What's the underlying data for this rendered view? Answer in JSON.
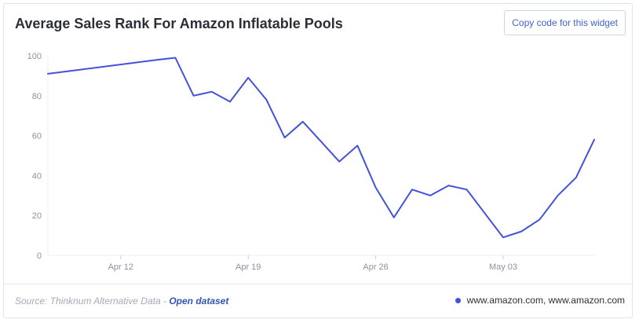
{
  "widget": {
    "title": "Average Sales Rank For Amazon Inflatable Pools",
    "copy_button_label": "Copy code for this widget"
  },
  "footer": {
    "source_prefix": "Source: Thinknum Alternative Data -",
    "source_link": "Open dataset",
    "legend_label": "www.amazon.com, www.amazon.com"
  },
  "colors": {
    "line": "#4352d8",
    "grid": "#e9ecf1"
  },
  "chart_data": {
    "type": "line",
    "title": "Average Sales Rank For Amazon Inflatable Pools",
    "xlabel": "",
    "ylabel": "",
    "ylim": [
      0,
      100
    ],
    "yticks": [
      0,
      20,
      40,
      60,
      80,
      100
    ],
    "xlim": [
      "2021-04-08",
      "2021-05-08"
    ],
    "xticks": [
      {
        "date": "2021-04-12",
        "label": "Apr 12"
      },
      {
        "date": "2021-04-19",
        "label": "Apr 19"
      },
      {
        "date": "2021-04-26",
        "label": "Apr 26"
      },
      {
        "date": "2021-05-03",
        "label": "May 03"
      }
    ],
    "grid": false,
    "legend": "bottom-right",
    "series": [
      {
        "name": "www.amazon.com, www.amazon.com",
        "x": [
          "2021-04-08",
          "2021-04-14",
          "2021-04-15",
          "2021-04-16",
          "2021-04-17",
          "2021-04-18",
          "2021-04-19",
          "2021-04-20",
          "2021-04-21",
          "2021-04-22",
          "2021-04-23",
          "2021-04-24",
          "2021-04-25",
          "2021-04-26",
          "2021-04-27",
          "2021-04-28",
          "2021-04-29",
          "2021-04-30",
          "2021-05-01",
          "2021-05-02",
          "2021-05-03",
          "2021-05-04",
          "2021-05-05",
          "2021-05-06",
          "2021-05-07",
          "2021-05-08"
        ],
        "values": [
          91,
          98,
          99,
          80,
          82,
          77,
          89,
          78,
          59,
          67,
          57,
          47,
          55,
          34,
          19,
          33,
          30,
          35,
          33,
          21,
          9,
          12,
          18,
          30,
          39,
          58
        ]
      }
    ]
  }
}
